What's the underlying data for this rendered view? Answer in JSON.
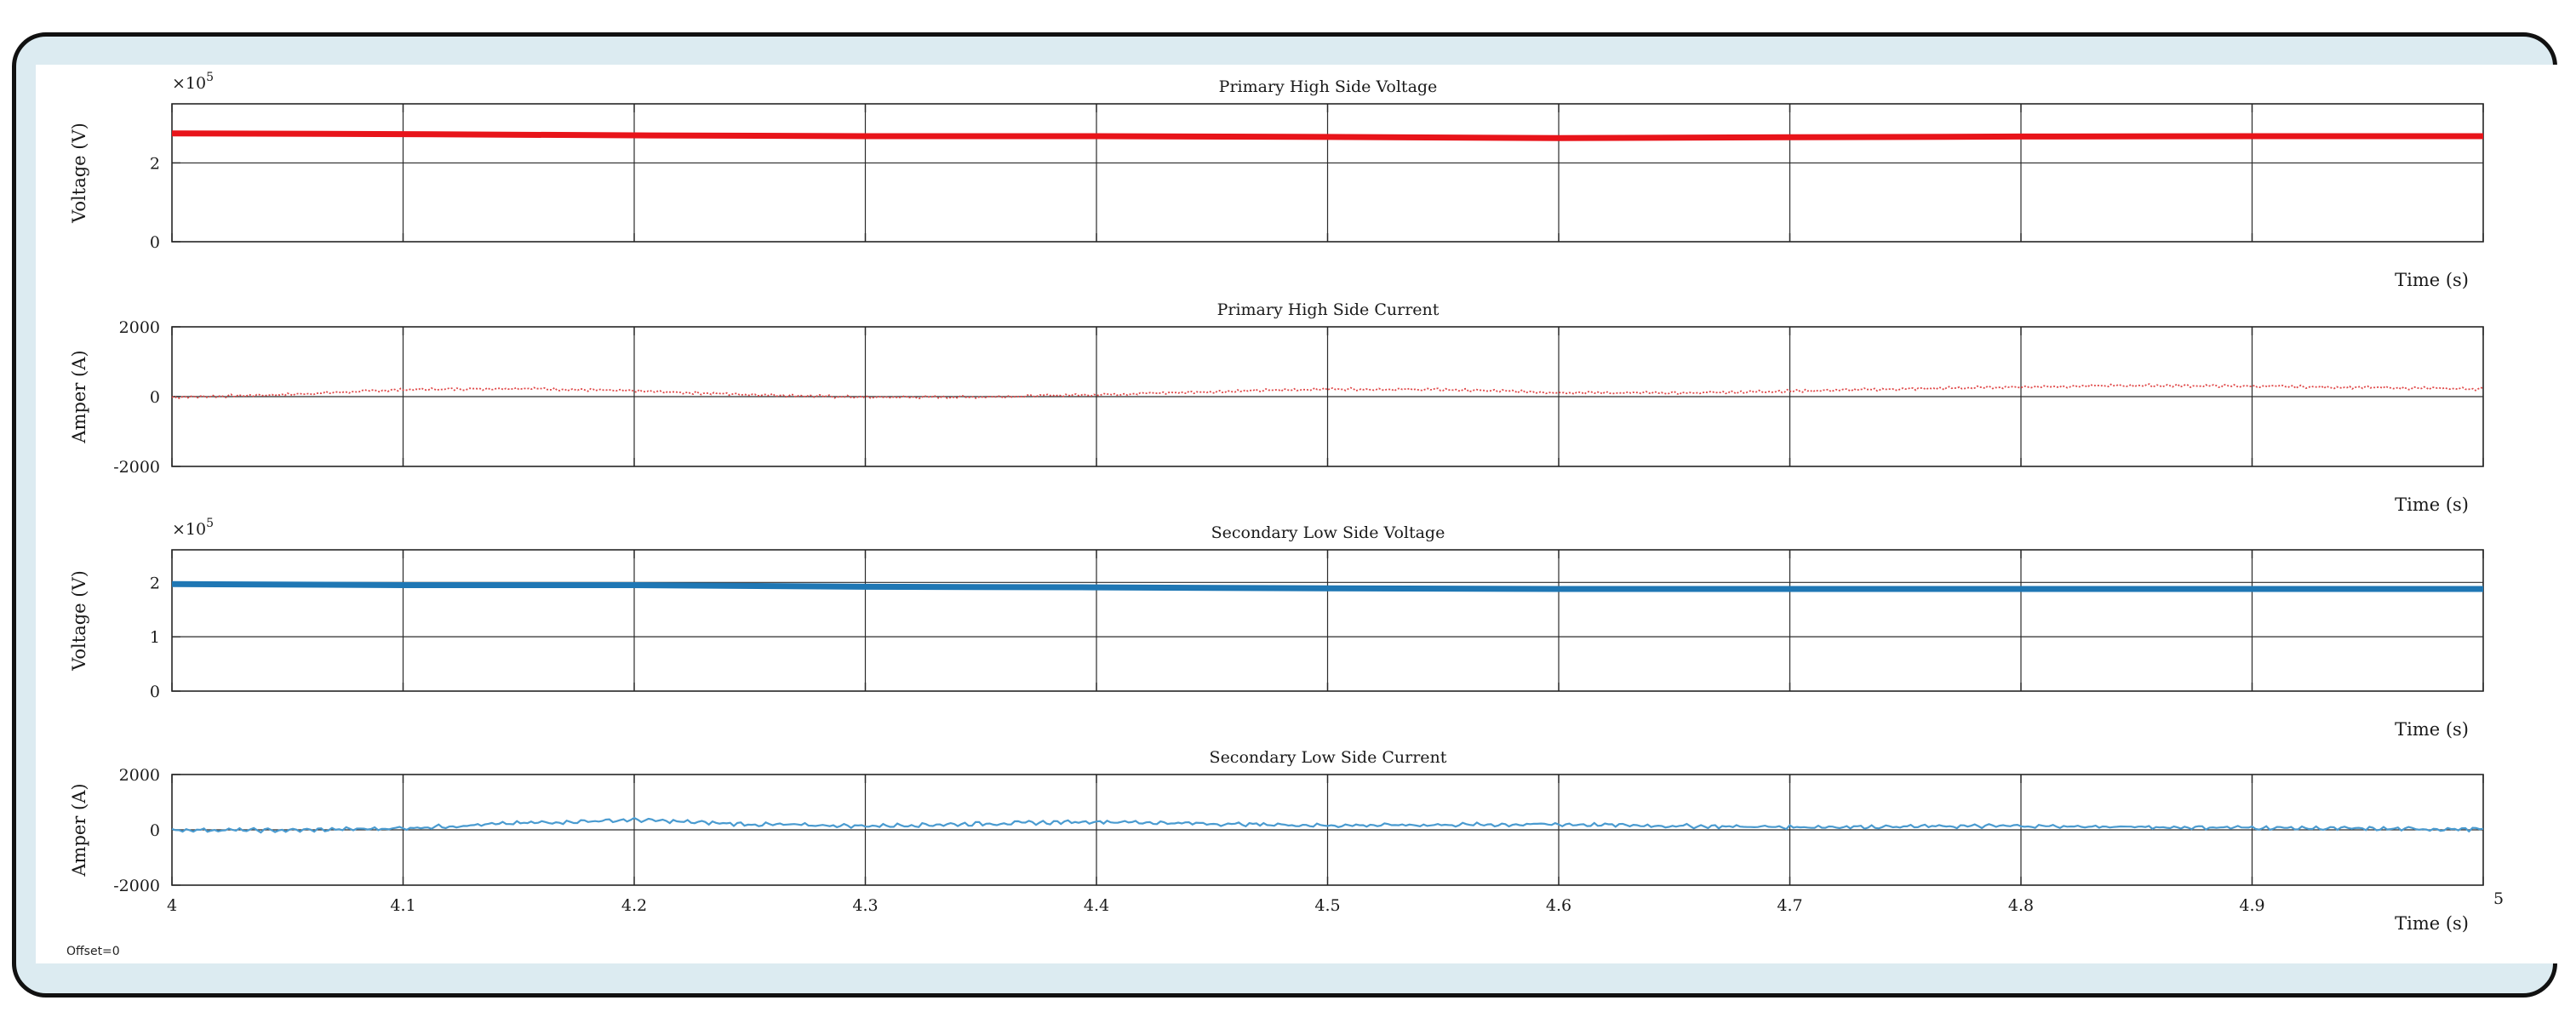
{
  "offset_label": "Offset=0",
  "colors": {
    "red": "#e8141a",
    "red_trace": "#e04848",
    "blue": "#1f77b4",
    "blue_trace": "#4a9bd0"
  },
  "chart_data": [
    {
      "type": "line",
      "title": "Primary High Side Voltage",
      "xlabel": "Time (s)",
      "ylabel": "Voltage (V)",
      "exponent": "×10",
      "exponent_power": "5",
      "xlim": [
        4,
        5
      ],
      "ylim": [
        0,
        3.5
      ],
      "yticks": [
        {
          "v": 0,
          "label": "0"
        },
        {
          "v": 2,
          "label": "2"
        }
      ],
      "show_xtick_labels": false,
      "style": "thick",
      "series": [
        {
          "color": "#e8141a",
          "x": [
            4.0,
            4.1,
            4.2,
            4.3,
            4.4,
            4.5,
            4.6,
            4.7,
            4.8,
            4.9,
            5.0
          ],
          "values": [
            2.75,
            2.73,
            2.7,
            2.68,
            2.68,
            2.66,
            2.63,
            2.65,
            2.67,
            2.68,
            2.68
          ]
        }
      ]
    },
    {
      "type": "line",
      "title": "Primary High Side Current",
      "xlabel": "Time (s)",
      "ylabel": "Amper (A)",
      "xlim": [
        4,
        5
      ],
      "ylim": [
        -2000,
        2000
      ],
      "yticks": [
        {
          "v": -2000,
          "label": "-2000"
        },
        {
          "v": 0,
          "label": "0"
        },
        {
          "v": 2000,
          "label": "2000"
        }
      ],
      "show_xtick_labels": false,
      "style": "dotted",
      "series": [
        {
          "color": "#e04848",
          "x": [
            4.0,
            4.05,
            4.1,
            4.15,
            4.2,
            4.25,
            4.3,
            4.35,
            4.4,
            4.45,
            4.5,
            4.55,
            4.6,
            4.65,
            4.7,
            4.75,
            4.8,
            4.85,
            4.9,
            4.95,
            5.0
          ],
          "values": [
            -20,
            60,
            200,
            240,
            160,
            60,
            -20,
            -10,
            60,
            140,
            220,
            200,
            120,
            100,
            160,
            220,
            280,
            320,
            300,
            260,
            220
          ]
        }
      ]
    },
    {
      "type": "line",
      "title": "Secondary Low Side Voltage",
      "xlabel": "Time (s)",
      "ylabel": "Voltage (V)",
      "exponent": "×10",
      "exponent_power": "5",
      "xlim": [
        4,
        5
      ],
      "ylim": [
        0,
        2.6
      ],
      "yticks": [
        {
          "v": 0,
          "label": "0"
        },
        {
          "v": 1,
          "label": "1"
        },
        {
          "v": 2,
          "label": "2"
        }
      ],
      "show_xtick_labels": false,
      "style": "thick",
      "series": [
        {
          "color": "#1f77b4",
          "x": [
            4.0,
            4.1,
            4.2,
            4.3,
            4.4,
            4.5,
            4.6,
            4.7,
            4.8,
            4.9,
            5.0
          ],
          "values": [
            1.97,
            1.95,
            1.95,
            1.92,
            1.91,
            1.89,
            1.88,
            1.88,
            1.88,
            1.88,
            1.88
          ]
        }
      ]
    },
    {
      "type": "line",
      "title": "Secondary Low Side Current",
      "xlabel": "Time (s)",
      "ylabel": "Amper (A)",
      "xlim": [
        4,
        5
      ],
      "ylim": [
        -2000,
        2000
      ],
      "yticks": [
        {
          "v": -2000,
          "label": "-2000"
        },
        {
          "v": 0,
          "label": "0"
        },
        {
          "v": 2000,
          "label": "2000"
        }
      ],
      "show_xtick_labels": true,
      "xticks": [
        {
          "v": 4,
          "label": "4"
        },
        {
          "v": 4.1,
          "label": "4.1"
        },
        {
          "v": 4.2,
          "label": "4.2"
        },
        {
          "v": 4.3,
          "label": "4.3"
        },
        {
          "v": 4.4,
          "label": "4.4"
        },
        {
          "v": 4.5,
          "label": "4.5"
        },
        {
          "v": 4.6,
          "label": "4.6"
        },
        {
          "v": 4.7,
          "label": "4.7"
        },
        {
          "v": 4.8,
          "label": "4.8"
        },
        {
          "v": 4.9,
          "label": "4.9"
        },
        {
          "v": 5,
          "label": "5"
        }
      ],
      "style": "wiggle",
      "series": [
        {
          "color": "#4a9bd0",
          "x": [
            4.0,
            4.05,
            4.1,
            4.15,
            4.2,
            4.25,
            4.3,
            4.35,
            4.4,
            4.45,
            4.5,
            4.55,
            4.6,
            4.65,
            4.7,
            4.75,
            4.8,
            4.85,
            4.9,
            4.95,
            5.0
          ],
          "values": [
            0,
            -20,
            60,
            240,
            360,
            200,
            140,
            220,
            300,
            220,
            160,
            180,
            200,
            140,
            100,
            120,
            140,
            100,
            80,
            40,
            20
          ]
        }
      ]
    }
  ]
}
